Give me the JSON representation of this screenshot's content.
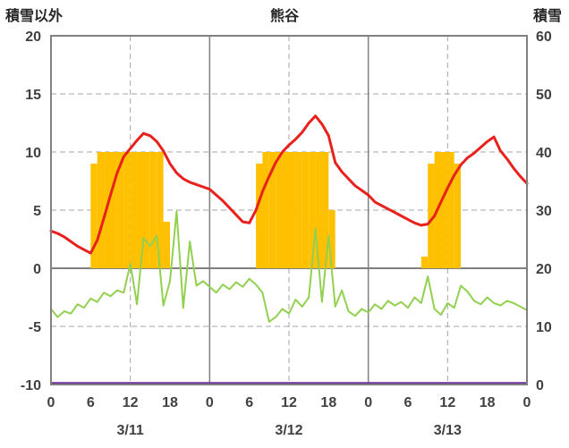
{
  "chart_data": {
    "type": "line",
    "title": "熊谷",
    "x_unit": "hour",
    "x_range": [
      0,
      72
    ],
    "left_axis": {
      "title": "積雪以外",
      "range": [
        -10,
        20
      ],
      "ticks": [
        "20",
        "15",
        "10",
        "5",
        "0",
        "-5",
        "-10"
      ]
    },
    "right_axis": {
      "title": "積雪",
      "range": [
        0,
        60
      ],
      "ticks": [
        "60",
        "50",
        "40",
        "30",
        "20",
        "10",
        "0"
      ]
    },
    "x_ticks": [
      [
        0,
        "0"
      ],
      [
        6,
        "6"
      ],
      [
        12,
        "12"
      ],
      [
        18,
        "18"
      ],
      [
        24,
        "0"
      ],
      [
        30,
        "6"
      ],
      [
        36,
        "12"
      ],
      [
        42,
        "18"
      ],
      [
        48,
        "0"
      ],
      [
        54,
        "6"
      ],
      [
        60,
        "12"
      ],
      [
        66,
        "18"
      ],
      [
        72,
        "0"
      ]
    ],
    "date_labels": [
      [
        12,
        "3/11"
      ],
      [
        36,
        "3/12"
      ],
      [
        60,
        "3/13"
      ]
    ],
    "grid": {
      "h_dashed": [
        15,
        10,
        5,
        -5
      ],
      "h_solid": [
        0
      ],
      "v_dashed": [
        12,
        36,
        60
      ],
      "v_solid": [
        24,
        48
      ]
    },
    "style": {
      "frame": "#808080",
      "grid_solid": "#808080",
      "grid_dashed": "#a6a6a6",
      "text": "#404040",
      "background": "#ffffff"
    },
    "series": [
      {
        "name": "orange-bars",
        "type": "bar",
        "color": "#ffc000",
        "axis": "left",
        "bars": [
          [
            6,
            9
          ],
          [
            7,
            10
          ],
          [
            8,
            10
          ],
          [
            9,
            10
          ],
          [
            10,
            10
          ],
          [
            11,
            10
          ],
          [
            12,
            10
          ],
          [
            13,
            10
          ],
          [
            14,
            10
          ],
          [
            15,
            10
          ],
          [
            16,
            10
          ],
          [
            17,
            4
          ],
          [
            31,
            9
          ],
          [
            32,
            10
          ],
          [
            33,
            10
          ],
          [
            34,
            10
          ],
          [
            35,
            10
          ],
          [
            36,
            10
          ],
          [
            37,
            10
          ],
          [
            38,
            10
          ],
          [
            39,
            10
          ],
          [
            40,
            10
          ],
          [
            41,
            10
          ],
          [
            42,
            5
          ],
          [
            56,
            1
          ],
          [
            57,
            9
          ],
          [
            58,
            10
          ],
          [
            59,
            10
          ],
          [
            60,
            10
          ],
          [
            61,
            9
          ]
        ]
      },
      {
        "name": "green-line",
        "type": "line",
        "color": "#92d050",
        "width": 2,
        "axis": "left",
        "values": [
          -3.5,
          -4.2,
          -3.7,
          -3.9,
          -3.1,
          -3.4,
          -2.6,
          -2.9,
          -2.1,
          -2.4,
          -1.9,
          -2.1,
          0.4,
          -3.1,
          2.6,
          1.9,
          2.8,
          -3.2,
          -1.1,
          4.9,
          -3.4,
          2.3,
          -1.5,
          -1.1,
          -1.6,
          -2.1,
          -1.4,
          -1.8,
          -1.2,
          -1.6,
          -0.9,
          -1.4,
          -2.1,
          -4.6,
          -4.2,
          -3.5,
          -3.9,
          -2.7,
          -3.3,
          -2.5,
          3.4,
          -2.9,
          2.8,
          -3.3,
          -1.9,
          -3.7,
          -4.1,
          -3.5,
          -3.8,
          -3.1,
          -3.5,
          -2.8,
          -3.2,
          -2.9,
          -3.4,
          -2.5,
          -3.0,
          -0.7,
          -3.5,
          -4.0,
          -3.0,
          -3.4,
          -1.5,
          -2.0,
          -2.8,
          -3.1,
          -2.5,
          -3.0,
          -3.2,
          -2.8,
          -3.0,
          -3.3,
          -3.6
        ]
      },
      {
        "name": "red-line",
        "type": "line",
        "color": "#e8211d",
        "width": 3,
        "axis": "left",
        "values": [
          3.2,
          3.0,
          2.7,
          2.3,
          1.9,
          1.6,
          1.3,
          2.4,
          4.3,
          6.3,
          8.2,
          9.6,
          10.3,
          11.0,
          11.6,
          11.4,
          10.9,
          10.1,
          9.0,
          8.2,
          7.7,
          7.4,
          7.2,
          7.0,
          6.8,
          6.3,
          5.8,
          5.2,
          4.6,
          4.0,
          3.9,
          5.0,
          6.6,
          7.9,
          9.1,
          10.0,
          10.6,
          11.1,
          11.7,
          12.5,
          13.1,
          12.4,
          11.4,
          9.1,
          8.3,
          7.7,
          7.1,
          6.7,
          6.3,
          5.7,
          5.4,
          5.1,
          4.8,
          4.5,
          4.2,
          3.9,
          3.7,
          3.8,
          4.5,
          5.7,
          6.9,
          8.0,
          8.9,
          9.5,
          9.9,
          10.4,
          10.9,
          11.3,
          10.1,
          9.4,
          8.6,
          7.9,
          7.3
        ]
      },
      {
        "name": "purple-line",
        "type": "hline",
        "color": "#7030a0",
        "width": 2.5,
        "axis": "right",
        "value_right": 0,
        "value_left": -10
      }
    ]
  }
}
